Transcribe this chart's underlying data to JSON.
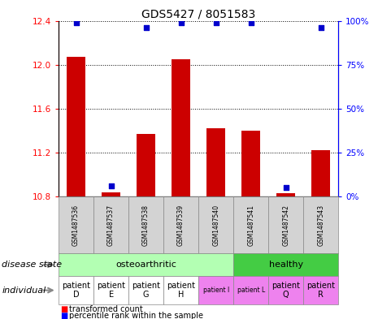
{
  "title": "GDS5427 / 8051583",
  "samples": [
    "GSM1487536",
    "GSM1487537",
    "GSM1487538",
    "GSM1487539",
    "GSM1487540",
    "GSM1487541",
    "GSM1487542",
    "GSM1487543"
  ],
  "transformed_counts": [
    12.07,
    10.835,
    11.37,
    12.05,
    11.42,
    11.4,
    10.825,
    11.22
  ],
  "percentile_ranks": [
    99,
    6,
    96,
    99,
    99,
    99,
    5,
    96
  ],
  "ylim_left": [
    10.8,
    12.4
  ],
  "yticks_left": [
    10.8,
    11.2,
    11.6,
    12.0,
    12.4
  ],
  "yticks_right": [
    0,
    25,
    50,
    75,
    100
  ],
  "ylim_right": [
    0,
    100
  ],
  "bar_color": "#cc0000",
  "dot_color": "#0000cc",
  "bar_width": 0.55,
  "bar_bottom": 10.8,
  "disease_groups": [
    {
      "label": "osteoarthritic",
      "start": 0,
      "end": 4,
      "color": "#b3ffb3"
    },
    {
      "label": "healthy",
      "start": 5,
      "end": 7,
      "color": "#44cc44"
    }
  ],
  "individuals": [
    "patient\nD",
    "patient\nE",
    "patient\nG",
    "patient\nH",
    "patient I",
    "patient L",
    "patient\nQ",
    "patient\nR"
  ],
  "individual_bg": [
    "white",
    "white",
    "white",
    "white",
    "#ee82ee",
    "#ee82ee",
    "#ee82ee",
    "#ee82ee"
  ],
  "ind_small": [
    4,
    5
  ],
  "sample_bg": "#d3d3d3",
  "sample_border": "#888888"
}
